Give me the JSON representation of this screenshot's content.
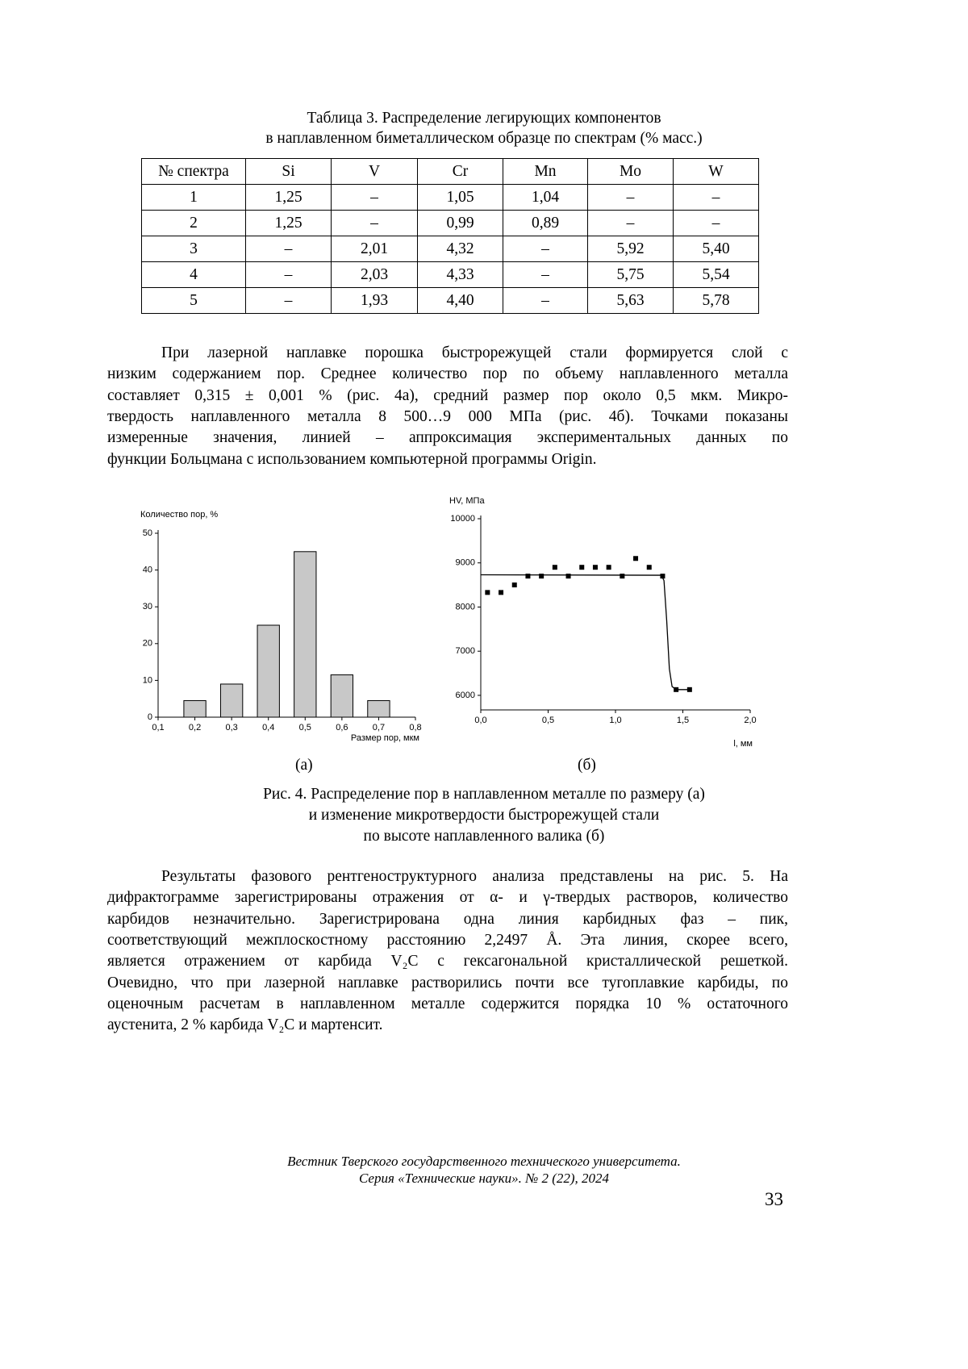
{
  "table_caption": [
    "Таблица 3. Распределение легирующих компонентов",
    "в наплавленном биметаллическом образце по спектрам (% масс.)"
  ],
  "table": {
    "header": [
      "№ спектра",
      "Si",
      "V",
      "Cr",
      "Mn",
      "Mo",
      "W"
    ],
    "rows": [
      [
        "1",
        "1,25",
        "–",
        "1,05",
        "1,04",
        "–",
        "–"
      ],
      [
        "2",
        "1,25",
        "–",
        "0,99",
        "0,89",
        "–",
        "–"
      ],
      [
        "3",
        "–",
        "2,01",
        "4,32",
        "–",
        "5,92",
        "5,40"
      ],
      [
        "4",
        "–",
        "2,03",
        "4,33",
        "–",
        "5,75",
        "5,54"
      ],
      [
        "5",
        "–",
        "1,93",
        "4,40",
        "–",
        "5,63",
        "5,78"
      ]
    ]
  },
  "paragraphs": [
    [
      "При лазерной наплавке порошка быстрорежущей стали формируется слой с",
      "низким содержанием пор. Среднее количество пор по объему наплавленного металла",
      "составляет 0,315 ± 0,001 % (рис. 4а), средний размер пор около 0,5 мкм. Микро-",
      "твердость наплавленного металла 8 500…9 000 МПа (рис. 4б). Точками показаны",
      "измеренные значения, линией – аппроксимация экспериментальных данных по",
      "функции Больцмана с использованием компьютерной программы Origin."
    ],
    [
      "Результаты фазового рентгеноструктурного анализа представлены на рис. 5. На",
      "дифрактограмме зарегистрированы отражения от α- и γ-твердых растворов, количество",
      "карбидов незначительно. Зарегистрирована одна линия карбидных фаз – пик,",
      "соответствующий межплоскостному расстоянию 2,2497 Å. Эта линия, скорее всего,",
      "является отражением от карбида V₂C с гексагональной кристаллической решеткой.",
      "Очевидно, что при лазерной наплавке растворились почти все тугоплавкие карбиды, по",
      "оценочным расчетам в наплавленном металле содержится порядка 10 % остаточного",
      "аустенита, 2 % карбида V₂C и мартенсит."
    ]
  ],
  "chart_data": [
    {
      "type": "bar",
      "ylabel": "Количество пор, %",
      "xlabel": "Размер пор, мкм",
      "x": [
        0.2,
        0.3,
        0.4,
        0.5,
        0.6,
        0.7
      ],
      "values": [
        4.5,
        9,
        25,
        45,
        11.5,
        4.5
      ],
      "bar_width": 0.06,
      "color": "#c8c8c8",
      "xlim": [
        0.1,
        0.8
      ],
      "ylim": [
        0,
        50
      ],
      "xticks": [
        {
          "value": 0.1,
          "label": "0,1"
        },
        {
          "value": 0.2,
          "label": "0,2"
        },
        {
          "value": 0.3,
          "label": "0,3"
        },
        {
          "value": 0.4,
          "label": "0,4"
        },
        {
          "value": 0.5,
          "label": "0,5"
        },
        {
          "value": 0.6,
          "label": "0,6"
        },
        {
          "value": 0.7,
          "label": "0,7"
        },
        {
          "value": 0.8,
          "label": "0,8"
        }
      ],
      "yticks": [
        0,
        10,
        20,
        30,
        40,
        50
      ]
    },
    {
      "type": "scatter",
      "ylabel": "HV, МПа",
      "xlabel": "l, мм",
      "series": [
        {
          "type": "scatter",
          "color": "#000000",
          "x": [
            0.05,
            0.15,
            0.25,
            0.35,
            0.45,
            0.55,
            0.65,
            0.75,
            0.85,
            0.95,
            1.05,
            1.15,
            1.25,
            1.35,
            1.45,
            1.55
          ],
          "values": [
            8330,
            8330,
            8500,
            8700,
            8700,
            8900,
            8700,
            8900,
            8900,
            8900,
            8700,
            9100,
            8900,
            8700,
            6130,
            6130
          ]
        },
        {
          "type": "line",
          "color": "#000000",
          "x": [
            0,
            1.34,
            1.36,
            1.38,
            1.4,
            1.42,
            1.45,
            1.55
          ],
          "values": [
            8730,
            8720,
            8600,
            7700,
            6600,
            6200,
            6130,
            6130
          ]
        }
      ],
      "xlim": [
        0,
        2
      ],
      "ylim": [
        5670,
        10000
      ],
      "xticks": [
        {
          "value": 0,
          "label": "0,0"
        },
        {
          "value": 0.5,
          "label": "0,5"
        },
        {
          "value": 1,
          "label": "1,0"
        },
        {
          "value": 1.5,
          "label": "1,5"
        },
        {
          "value": 2,
          "label": "2,0"
        }
      ],
      "yticks": [
        6000,
        7000,
        8000,
        9000,
        10000
      ]
    }
  ],
  "figure_labels": [
    "(а)",
    "(б)"
  ],
  "figure_caption": [
    "Рис. 4. Распределение пор в наплавленном металле по размеру (а)",
    "и изменение микротвердости быстрорежущей стали",
    "по высоте наплавленного валика (б)"
  ],
  "footer": [
    "Вестник Тверского государственного технического университета.",
    "Серия «Технические науки». № 2 (22), 2024"
  ],
  "page_number": "33"
}
